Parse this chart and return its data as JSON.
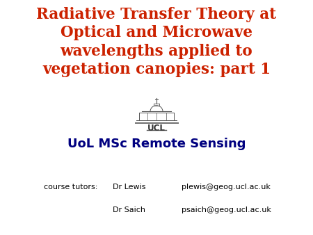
{
  "title_line1": "Radiative Transfer Theory at",
  "title_line2": "Optical and Microwave",
  "title_line3": "wavelengths applied to",
  "title_line4": "vegetation canopies: part 1",
  "title_color": "#CC2200",
  "subtitle": "UoL MSc Remote Sensing",
  "subtitle_color": "#000080",
  "background_color": "#FFFFFF",
  "course_label": "course tutors:",
  "tutor1_name": "Dr Lewis",
  "tutor1_email": "plewis@geog.ucl.ac.uk",
  "tutor2_name": "Dr Saich",
  "tutor2_email": "psaich@geog.ucl.ac.uk",
  "footer_color": "#000000",
  "title_fontsize": 15.5,
  "subtitle_fontsize": 13,
  "footer_fontsize": 8,
  "ucl_text_fontsize": 8.5
}
